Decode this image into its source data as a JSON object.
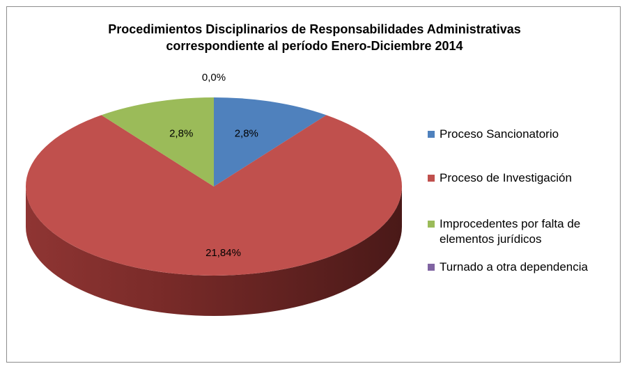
{
  "chart_data": {
    "type": "pie",
    "title_line1": "Procedimientos Disciplinarios de Responsabilidades Administrativas",
    "title_line2": "correspondiente al período Enero-Diciembre 2014",
    "categories": [
      "Proceso Sancionatorio",
      "Proceso de Investigación",
      "Improcedentes por falta de elementos jurídicos",
      "Turnado a otra dependencia"
    ],
    "values": [
      2.8,
      21.84,
      2.8,
      0.0
    ],
    "data_labels": [
      "2,8%",
      "21,84%",
      "2,8%",
      "0,0%"
    ],
    "colors": [
      "#4f81bd",
      "#c0504d",
      "#9bbb59",
      "#8064a2"
    ],
    "style": "3d",
    "legend_position": "right"
  },
  "legend": {
    "items": [
      {
        "label": "Proceso Sancionatorio",
        "color": "#4f81bd"
      },
      {
        "label": "Proceso de Investigación",
        "color": "#c0504d"
      },
      {
        "label": "Improcedentes por falta de elementos jurídicos",
        "color": "#9bbb59"
      },
      {
        "label": "Turnado a otra dependencia",
        "color": "#8064a2"
      }
    ]
  }
}
